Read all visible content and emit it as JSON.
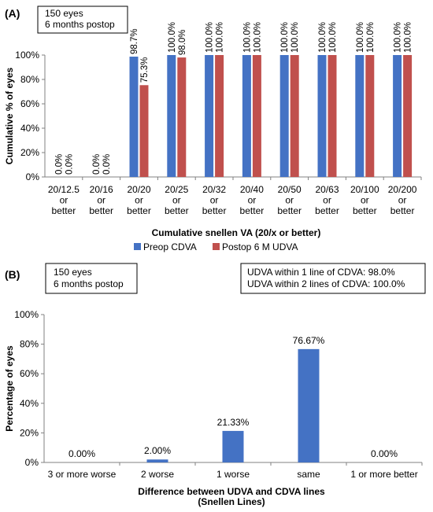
{
  "chart_data": [
    {
      "panel_label": "(A)",
      "type": "bar",
      "note_lines": [
        "150 eyes",
        "6 months postop"
      ],
      "categories": [
        [
          "20/12.5",
          "or",
          "better"
        ],
        [
          "20/16",
          "or",
          "better"
        ],
        [
          "20/20",
          "or",
          "better"
        ],
        [
          "20/25",
          "or",
          "better"
        ],
        [
          "20/32",
          "or",
          "better"
        ],
        [
          "20/40",
          "or",
          "better"
        ],
        [
          "20/50",
          "or",
          "better"
        ],
        [
          "20/63",
          "or",
          "better"
        ],
        [
          "20/100",
          "or",
          "better"
        ],
        [
          "20/200",
          "or",
          "better"
        ]
      ],
      "series": [
        {
          "name": "Preop CDVA",
          "color": "#4472c4",
          "values": [
            0.0,
            0.0,
            98.7,
            100.0,
            100.0,
            100.0,
            100.0,
            100.0,
            100.0,
            100.0
          ],
          "labels": [
            "0.0%",
            "0.0%",
            "98.7%",
            "100.0%",
            "100.0%",
            "100.0%",
            "100.0%",
            "100.0%",
            "100.0%",
            "100.0%"
          ]
        },
        {
          "name": "Postop 6 M UDVA",
          "color": "#c0504d",
          "values": [
            0.0,
            0.0,
            75.3,
            98.0,
            100.0,
            100.0,
            100.0,
            100.0,
            100.0,
            100.0
          ],
          "labels": [
            "0.0%",
            "0.0%",
            "75.3%",
            "98.0%",
            "100.0%",
            "100.0%",
            "100.0%",
            "100.0%",
            "100.0%",
            "100.0%"
          ]
        }
      ],
      "xlabel": "Cumulative snellen VA (20/x or better)",
      "ylabel": "Cumulative % of eyes",
      "ylim": [
        0,
        100
      ],
      "yticks": [
        "0%",
        "20%",
        "40%",
        "60%",
        "80%",
        "100%"
      ],
      "grid": false,
      "legend": "bottom"
    },
    {
      "panel_label": "(B)",
      "type": "bar",
      "note_lines": [
        "150 eyes",
        "6 months postop"
      ],
      "summary_lines": [
        "UDVA within 1 line of CDVA: 98.0%",
        "UDVA within 2 lines of CDVA: 100.0%"
      ],
      "categories": [
        "3 or more worse",
        "2 worse",
        "1 worse",
        "same",
        "1 or more better"
      ],
      "series": [
        {
          "color": "#4472c4",
          "values": [
            0.0,
            2.0,
            21.33,
            76.67,
            0.0
          ],
          "labels": [
            "0.00%",
            "2.00%",
            "21.33%",
            "76.67%",
            "0.00%"
          ]
        }
      ],
      "xlabel_lines": [
        "Difference between UDVA and CDVA lines",
        "(Snellen Lines)"
      ],
      "ylabel": "Percentage of eyes",
      "ylim": [
        0,
        100
      ],
      "yticks": [
        "0%",
        "20%",
        "40%",
        "60%",
        "80%",
        "100%"
      ],
      "grid": false,
      "legend": "none"
    }
  ]
}
